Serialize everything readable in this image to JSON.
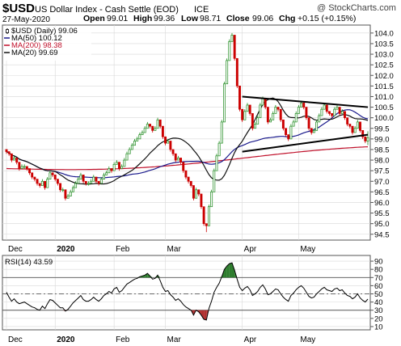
{
  "header": {
    "symbol": "$USD",
    "name": "US Dollar Index - Cash Settle (EOD)",
    "exchange": "ICE",
    "watermark": "@ StockCharts.com",
    "date": "27-May-2020",
    "open_label": "Open",
    "open": "99.01",
    "high_label": "High",
    "high": "99.36",
    "low_label": "Low",
    "low": "98.71",
    "close_label": "Close",
    "close": "99.06",
    "chg_label": "Chg",
    "chg": "+0.15 (+0.15%)"
  },
  "legend": [
    {
      "label": "$USD (Daily) 99.06",
      "color": "#000000",
      "kind": "candle"
    },
    {
      "label": "MA(50) 100.12",
      "color": "#1a1a8c",
      "kind": "line"
    },
    {
      "label": "MA(200) 98.38",
      "color": "#c0102a",
      "kind": "line"
    },
    {
      "label": "MA(20) 99.69",
      "color": "#000000",
      "kind": "line"
    }
  ],
  "rsi_label": "RSI(14) 43.59",
  "colors": {
    "up": "#1e8a1e",
    "down": "#cc0000",
    "ma50": "#1a1a8c",
    "ma200": "#c0102a",
    "ma20": "#111111",
    "grid": "#d8d8d8",
    "rsi": "#000000",
    "rsi_fill": "#2e7d2e"
  },
  "chart_data": [
    {
      "type": "candlestick",
      "title": "$USD US Dollar Index - Cash Settle (EOD) ICE",
      "x_tick_labels": [
        "Dec",
        "2020",
        "Feb",
        "Mar",
        "Apr",
        "May"
      ],
      "y_ticks": [
        94.5,
        95.0,
        95.5,
        96.0,
        96.5,
        97.0,
        97.5,
        98.0,
        98.5,
        99.0,
        99.5,
        100.0,
        100.5,
        101.0,
        101.5,
        102.0,
        102.5,
        103.0,
        103.5,
        104.0
      ],
      "ylim": [
        94.3,
        104.3
      ],
      "close": [
        98.4,
        98.3,
        98.0,
        98.1,
        97.9,
        97.6,
        97.7,
        97.7,
        97.6,
        97.4,
        97.2,
        97.1,
        96.9,
        96.8,
        97.0,
        96.7,
        97.1,
        97.4,
        97.3,
        97.1,
        96.9,
        96.6,
        96.6,
        96.2,
        96.3,
        96.5,
        96.7,
        96.9,
        97.1,
        97.3,
        97.0,
        96.9,
        96.9,
        97.0,
        97.2,
        97.0,
        96.9,
        97.1,
        97.3,
        97.4,
        97.6,
        97.5,
        97.8,
        97.9,
        97.6,
        97.7,
        98.0,
        98.3,
        98.5,
        98.7,
        98.9,
        99.0,
        99.2,
        99.3,
        99.5,
        99.7,
        99.6,
        99.4,
        99.5,
        99.9,
        99.6,
        99.1,
        98.8,
        98.9,
        98.5,
        98.3,
        98.0,
        98.1,
        97.9,
        97.5,
        97.2,
        97.0,
        96.8,
        96.2,
        96.6,
        96.4,
        95.8,
        95.0,
        94.9,
        95.8,
        96.5,
        97.5,
        98.2,
        98.8,
        99.8,
        101.6,
        102.7,
        103.6,
        103.9,
        102.8,
        101.5,
        100.4,
        99.9,
        100.3,
        100.6,
        100.2,
        99.5,
        99.7,
        100.0,
        100.6,
        100.9,
        100.5,
        99.8,
        99.9,
        100.2,
        100.5,
        100.4,
        99.9,
        99.5,
        99.2,
        99.0,
        99.6,
        99.8,
        100.2,
        100.5,
        100.7,
        100.5,
        100.0,
        99.5,
        99.3,
        99.4,
        99.8,
        100.1,
        100.4,
        100.6,
        100.3,
        100.2,
        100.1,
        100.4,
        100.5,
        100.2,
        100.3,
        100.0,
        99.7,
        99.6,
        99.3,
        99.5,
        99.8,
        99.4,
        99.1,
        98.9,
        99.06
      ],
      "high": [
        98.5,
        98.4,
        98.1,
        98.2,
        98.0,
        97.7,
        97.8,
        97.8,
        97.7,
        97.5,
        97.3,
        97.2,
        97.0,
        96.9,
        97.1,
        96.8,
        97.2,
        97.5,
        97.4,
        97.2,
        97.0,
        96.7,
        96.7,
        96.3,
        96.4,
        96.6,
        96.8,
        97.0,
        97.2,
        97.4,
        97.1,
        97.0,
        97.0,
        97.1,
        97.3,
        97.1,
        97.0,
        97.2,
        97.4,
        97.5,
        97.7,
        97.6,
        97.9,
        98.0,
        97.7,
        97.8,
        98.1,
        98.4,
        98.6,
        98.8,
        99.0,
        99.1,
        99.3,
        99.4,
        99.6,
        99.8,
        99.7,
        99.5,
        99.6,
        100.0,
        99.7,
        99.2,
        98.9,
        99.0,
        98.6,
        98.4,
        98.1,
        98.2,
        98.0,
        97.6,
        97.3,
        97.1,
        96.9,
        96.3,
        96.7,
        96.5,
        95.9,
        95.1,
        95.0,
        95.9,
        96.6,
        97.6,
        98.3,
        98.9,
        99.9,
        101.7,
        102.8,
        103.7,
        104.0,
        102.9,
        101.6,
        100.5,
        100.0,
        100.4,
        100.7,
        100.3,
        99.6,
        99.8,
        100.1,
        100.7,
        101.0,
        100.6,
        99.9,
        100.0,
        100.3,
        100.6,
        100.5,
        100.0,
        99.6,
        99.3,
        99.1,
        99.7,
        99.9,
        100.3,
        100.6,
        100.8,
        100.6,
        100.1,
        99.6,
        99.4,
        99.5,
        99.9,
        100.2,
        100.5,
        100.7,
        100.4,
        100.3,
        100.2,
        100.5,
        100.6,
        100.3,
        100.4,
        100.1,
        99.8,
        99.7,
        99.4,
        99.6,
        99.9,
        99.5,
        99.2,
        99.0,
        99.36
      ],
      "low": [
        98.3,
        98.2,
        97.9,
        98.0,
        97.8,
        97.5,
        97.6,
        97.6,
        97.5,
        97.3,
        97.1,
        97.0,
        96.8,
        96.7,
        96.9,
        96.6,
        97.0,
        97.3,
        97.2,
        97.0,
        96.8,
        96.5,
        96.5,
        96.1,
        96.2,
        96.4,
        96.6,
        96.8,
        97.0,
        97.2,
        96.9,
        96.8,
        96.8,
        96.9,
        97.1,
        96.9,
        96.8,
        97.0,
        97.2,
        97.3,
        97.5,
        97.4,
        97.7,
        97.8,
        97.5,
        97.6,
        97.9,
        98.2,
        98.4,
        98.6,
        98.8,
        98.9,
        99.1,
        99.2,
        99.4,
        99.6,
        99.5,
        99.3,
        99.4,
        99.8,
        99.5,
        99.0,
        98.7,
        98.8,
        98.4,
        98.2,
        97.9,
        98.0,
        97.8,
        97.4,
        97.1,
        96.9,
        96.7,
        96.1,
        96.5,
        96.3,
        95.7,
        94.9,
        94.6,
        95.7,
        96.4,
        97.4,
        98.1,
        98.7,
        99.7,
        101.5,
        102.6,
        103.5,
        103.8,
        102.7,
        101.4,
        100.3,
        99.8,
        100.2,
        100.5,
        100.1,
        99.4,
        99.6,
        99.9,
        100.5,
        100.8,
        100.4,
        99.7,
        99.8,
        100.1,
        100.4,
        100.3,
        99.8,
        99.4,
        99.1,
        98.9,
        99.5,
        99.7,
        100.1,
        100.4,
        100.6,
        100.4,
        99.9,
        99.4,
        99.2,
        99.3,
        99.7,
        100.0,
        100.3,
        100.5,
        100.2,
        100.1,
        100.0,
        100.3,
        100.4,
        100.1,
        100.2,
        99.9,
        99.6,
        99.5,
        99.2,
        99.4,
        99.7,
        99.3,
        99.0,
        98.8,
        98.71
      ],
      "trendline_upper": [
        [
          92,
          101.0
        ],
        [
          141,
          100.5
        ]
      ],
      "trendline_lower": [
        [
          92,
          98.4
        ],
        [
          141,
          99.2
        ]
      ]
    },
    {
      "type": "line",
      "title": "RSI(14) 43.59",
      "y_ticks": [
        10,
        20,
        30,
        40,
        50,
        60,
        70,
        80,
        90
      ],
      "ylim": [
        8,
        95
      ],
      "reference_lines": [
        30,
        50,
        70
      ],
      "x_tick_labels": [
        "Dec",
        "2020",
        "Feb",
        "Mar",
        "Apr",
        "May"
      ],
      "values": [
        52,
        46,
        41,
        44,
        40,
        38,
        39,
        40,
        38,
        36,
        34,
        33,
        31,
        30,
        35,
        32,
        38,
        43,
        42,
        39,
        36,
        33,
        33,
        29,
        31,
        35,
        39,
        42,
        45,
        48,
        43,
        41,
        41,
        43,
        46,
        43,
        41,
        44,
        48,
        50,
        53,
        51,
        56,
        58,
        52,
        54,
        58,
        62,
        64,
        66,
        68,
        69,
        71,
        72,
        73,
        75,
        72,
        68,
        69,
        73,
        66,
        58,
        53,
        54,
        49,
        46,
        42,
        44,
        41,
        37,
        34,
        32,
        30,
        24,
        30,
        28,
        24,
        19,
        18,
        32,
        41,
        52,
        58,
        63,
        71,
        80,
        84,
        87,
        88,
        79,
        68,
        58,
        54,
        57,
        59,
        55,
        48,
        50,
        53,
        58,
        61,
        56,
        49,
        50,
        53,
        56,
        55,
        50,
        46,
        43,
        41,
        48,
        51,
        55,
        58,
        60,
        57,
        52,
        47,
        45,
        46,
        50,
        53,
        56,
        58,
        55,
        54,
        53,
        56,
        57,
        54,
        55,
        51,
        48,
        47,
        44,
        46,
        50,
        45,
        42,
        40,
        43.59
      ]
    }
  ]
}
